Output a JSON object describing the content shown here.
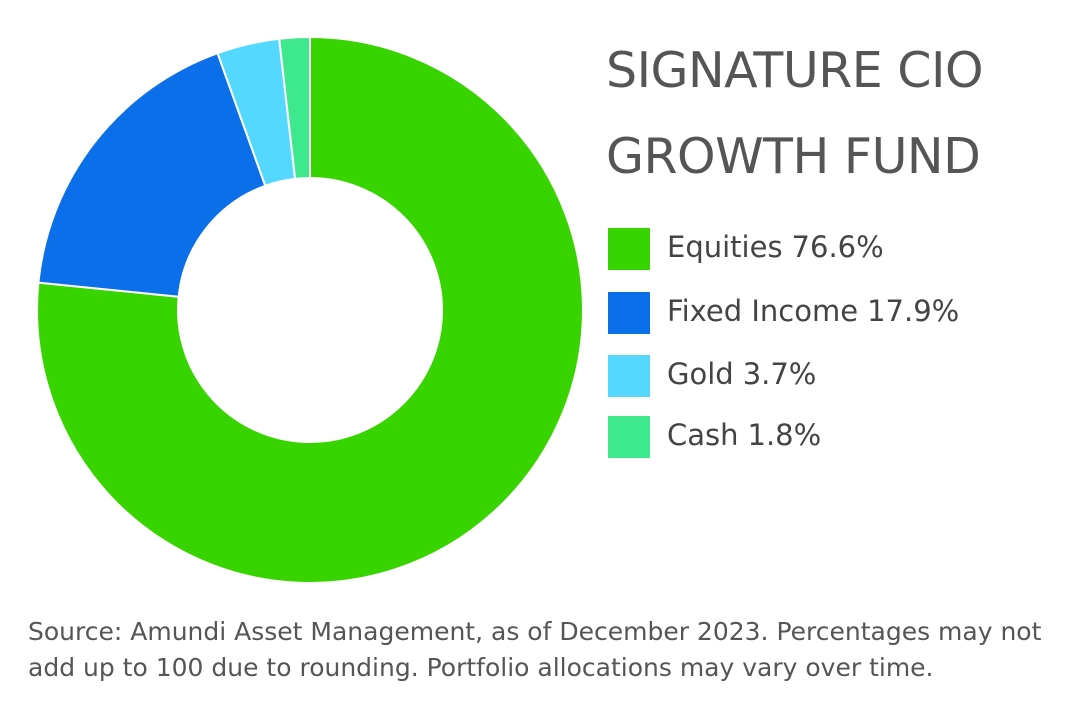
{
  "chart_data": {
    "type": "donut",
    "title": "SIGNATURE CIO GROWTH FUND",
    "categories": [
      "Equities",
      "Fixed Income",
      "Gold",
      "Cash"
    ],
    "values": [
      76.6,
      17.9,
      3.7,
      1.8
    ],
    "value_labels": [
      "76.6%",
      "17.9%",
      "3.7%",
      "1.8%"
    ],
    "colors": [
      "#38d400",
      "#0a6fe8",
      "#55d8ff",
      "#3ee88c"
    ],
    "note": "Source: Amundi Asset Management, as of December 2023. Percentages may not add up to 100 due to rounding. Portfolio allocations may vary over time."
  }
}
